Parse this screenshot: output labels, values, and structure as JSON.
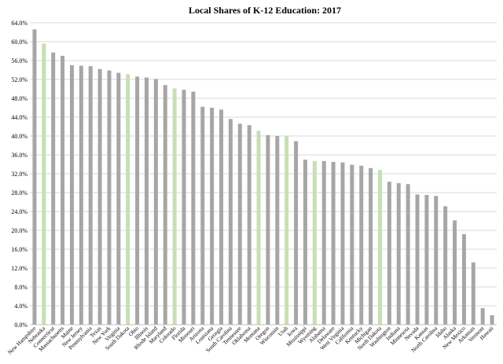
{
  "chart_data": {
    "type": "bar",
    "title": "Local Shares of K-12 Education: 2017",
    "xlabel": "",
    "ylabel": "",
    "ylim": [
      0,
      64
    ],
    "yticks": [
      0,
      4,
      8,
      12,
      16,
      20,
      24,
      28,
      32,
      36,
      40,
      44,
      48,
      52,
      56,
      60,
      64
    ],
    "ytick_labels": [
      "0.0%",
      "4.0%",
      "8.0%",
      "12.0%",
      "16.0%",
      "20.0%",
      "24.0%",
      "28.0%",
      "32.0%",
      "36.0%",
      "40.0%",
      "44.0%",
      "48.0%",
      "52.0%",
      "56.0%",
      "60.0%",
      "64.0%"
    ],
    "grid": true,
    "legend": "none",
    "colors": {
      "default": "#a6a6a6",
      "highlight": "#c5e0b4"
    },
    "categories": [
      "New Hampshire",
      "Nebraska",
      "Connecticut",
      "Massachusetts",
      "Maine",
      "New Jersey",
      "Pennsylvania",
      "Texas",
      "New York",
      "Virginia",
      "South Dakota",
      "Ohio",
      "Illinois",
      "Rhode Island",
      "Maryland",
      "Colorado",
      "Florida",
      "Missouri",
      "Arizona",
      "Louisiana",
      "Georgia",
      "South Carolina",
      "Tennessee",
      "Oklahoma",
      "Montana",
      "Oregon",
      "Wisconsin",
      "Utah",
      "Iowa",
      "Mississippi",
      "Wyoming",
      "Alabama",
      "Delaware",
      "West Virginia",
      "California",
      "Kentucky",
      "Michigan",
      "North Dakota",
      "Washington",
      "Indiana",
      "Minnesota",
      "Nevada",
      "Kansas",
      "North Carolina",
      "Idaho",
      "Alaska",
      "New Mexico",
      "Arkansas",
      "Vermont",
      "Hawaii"
    ],
    "values": [
      62.6,
      59.6,
      57.7,
      57.0,
      55.0,
      54.9,
      54.8,
      54.2,
      53.9,
      53.4,
      53.1,
      52.6,
      52.4,
      52.1,
      50.8,
      50.1,
      49.8,
      49.4,
      46.2,
      46.0,
      45.6,
      43.6,
      42.6,
      42.3,
      41.1,
      40.2,
      40.0,
      40.1,
      38.9,
      35.0,
      34.7,
      34.7,
      34.5,
      34.4,
      33.9,
      33.7,
      33.2,
      32.8,
      30.3,
      30.0,
      29.8,
      27.6,
      27.5,
      27.3,
      25.1,
      22.1,
      19.2,
      13.2,
      3.5,
      2.0
    ],
    "highlighted": [
      "Nebraska",
      "South Dakota",
      "Colorado",
      "Montana",
      "Utah",
      "Wyoming",
      "North Dakota"
    ]
  }
}
